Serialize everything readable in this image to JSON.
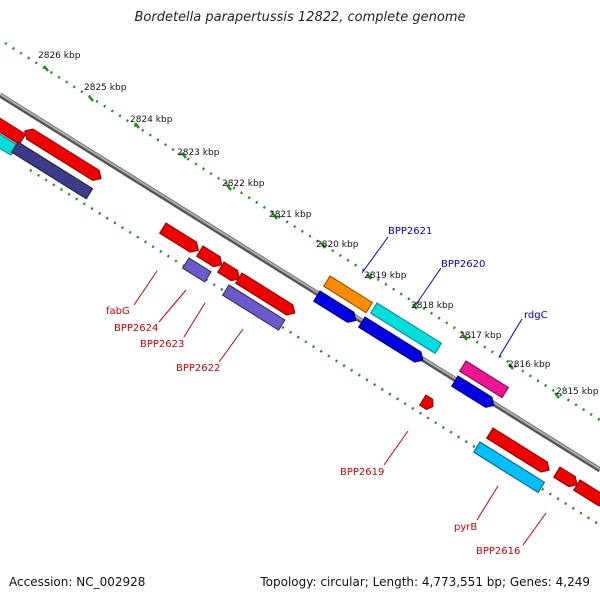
{
  "title": "Bordetella parapertussis 12822, complete genome",
  "footer": {
    "accession": "Accession: NC_002928",
    "stats": "Topology: circular; Length: 4,773,551 bp; Genes: 4,249"
  },
  "ticks": [
    "2826 kbp",
    "2825 kbp",
    "2824 kbp",
    "2823 kbp",
    "2822 kbp",
    "2821 kbp",
    "2820 kbp",
    "2819 kbp",
    "2818 kbp",
    "2817 kbp",
    "2816 kbp",
    "2815 kbp"
  ],
  "labels": {
    "fabG": "fabG",
    "BPP2624": "BPP2624",
    "BPP2623": "BPP2623",
    "BPP2622": "BPP2622",
    "BPP2621": "BPP2621",
    "BPP2620": "BPP2620",
    "rdgC": "rdgC",
    "BPP2619": "BPP2619",
    "pyrB": "pyrB",
    "BPP2616": "BPP2616"
  },
  "colors": {
    "backbone": "#808080",
    "tick": "#228b22",
    "forward_label": "#0000cc",
    "reverse_label": "#cc0000",
    "red": "#ee0000",
    "navy": "#3d3a8c",
    "slate": "#6a5acd",
    "blue": "#0000e0",
    "cyan": "#00dddd",
    "orange": "#ff8c00",
    "magenta": "#ee1493",
    "skyblue": "#00bfff"
  }
}
